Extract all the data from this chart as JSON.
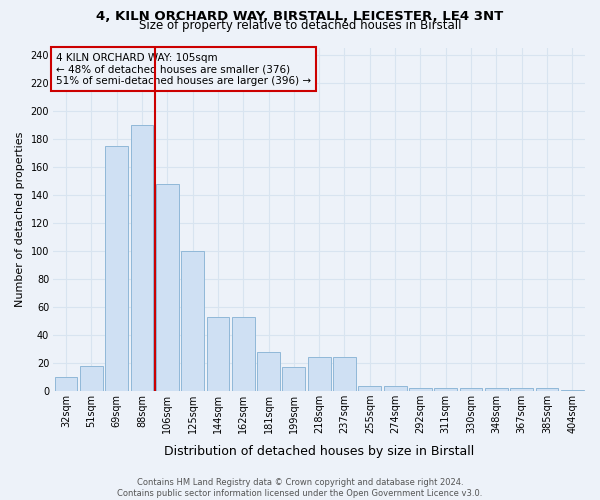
{
  "title_line1": "4, KILN ORCHARD WAY, BIRSTALL, LEICESTER, LE4 3NT",
  "title_line2": "Size of property relative to detached houses in Birstall",
  "xlabel": "Distribution of detached houses by size in Birstall",
  "ylabel": "Number of detached properties",
  "bar_labels": [
    "32sqm",
    "51sqm",
    "69sqm",
    "88sqm",
    "106sqm",
    "125sqm",
    "144sqm",
    "162sqm",
    "181sqm",
    "199sqm",
    "218sqm",
    "237sqm",
    "255sqm",
    "274sqm",
    "292sqm",
    "311sqm",
    "330sqm",
    "348sqm",
    "367sqm",
    "385sqm",
    "404sqm"
  ],
  "bar_values": [
    10,
    18,
    175,
    190,
    148,
    100,
    53,
    53,
    28,
    17,
    24,
    24,
    4,
    4,
    2,
    2,
    2,
    2,
    2,
    2,
    1
  ],
  "bar_color": "#cfe0f3",
  "bar_edge_color": "#90b8d8",
  "vline_color": "#cc0000",
  "annotation_text": "4 KILN ORCHARD WAY: 105sqm\n← 48% of detached houses are smaller (376)\n51% of semi-detached houses are larger (396) →",
  "annotation_box_edgecolor": "#cc0000",
  "ylim_max": 245,
  "yticks": [
    0,
    20,
    40,
    60,
    80,
    100,
    120,
    140,
    160,
    180,
    200,
    220,
    240
  ],
  "footer_line1": "Contains HM Land Registry data © Crown copyright and database right 2024.",
  "footer_line2": "Contains public sector information licensed under the Open Government Licence v3.0.",
  "bg_color": "#edf2f9",
  "grid_color": "#d8e4f0",
  "title_fontsize": 9.5,
  "subtitle_fontsize": 8.5,
  "tick_fontsize": 7,
  "ylabel_fontsize": 8,
  "xlabel_fontsize": 9,
  "footer_fontsize": 6,
  "annot_fontsize": 7.5
}
